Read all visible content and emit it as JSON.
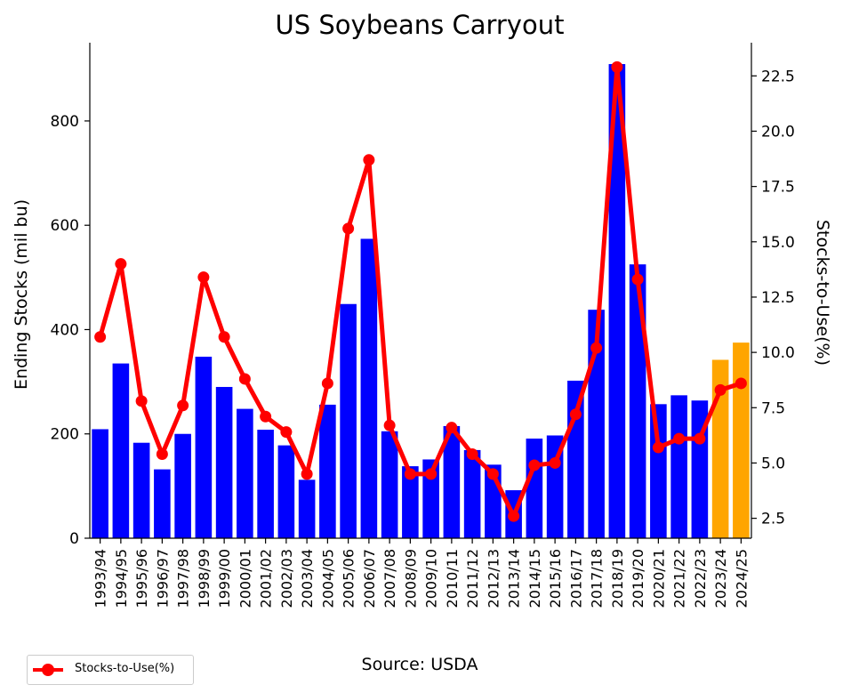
{
  "chart_data": {
    "type": "bar",
    "title": "US Soybeans Carryout",
    "ylabel": "Ending Stocks (mil bu)",
    "y2label": "Stocks-to-Use(%)",
    "source": "Source: USDA",
    "categories": [
      "1993/94",
      "1994/95",
      "1995/96",
      "1996/97",
      "1997/98",
      "1998/99",
      "1999/00",
      "2000/01",
      "2001/02",
      "2002/03",
      "2003/04",
      "2004/05",
      "2005/06",
      "2006/07",
      "2007/08",
      "2008/09",
      "2009/10",
      "2010/11",
      "2011/12",
      "2012/13",
      "2013/14",
      "2014/15",
      "2015/16",
      "2016/17",
      "2017/18",
      "2018/19",
      "2019/20",
      "2020/21",
      "2021/22",
      "2022/23",
      "2023/24",
      "2024/25"
    ],
    "ylim": [
      0,
      950
    ],
    "y2lim": [
      1.6,
      24.0
    ],
    "yticks": [
      "0",
      "200",
      "400",
      "600",
      "800"
    ],
    "y2ticks": [
      "2.5",
      "5.0",
      "7.5",
      "10.0",
      "12.5",
      "15.0",
      "17.5",
      "20.0",
      "22.5"
    ],
    "series": [
      {
        "axis": "left",
        "type": "bar",
        "values": [
          209,
          335,
          183,
          132,
          200,
          348,
          290,
          248,
          208,
          178,
          112,
          256,
          449,
          574,
          205,
          138,
          151,
          215,
          169,
          141,
          92,
          191,
          197,
          302,
          438,
          909,
          525,
          257,
          274,
          264,
          342,
          375
        ],
        "colors": [
          "#0000ff",
          "#0000ff",
          "#0000ff",
          "#0000ff",
          "#0000ff",
          "#0000ff",
          "#0000ff",
          "#0000ff",
          "#0000ff",
          "#0000ff",
          "#0000ff",
          "#0000ff",
          "#0000ff",
          "#0000ff",
          "#0000ff",
          "#0000ff",
          "#0000ff",
          "#0000ff",
          "#0000ff",
          "#0000ff",
          "#0000ff",
          "#0000ff",
          "#0000ff",
          "#0000ff",
          "#0000ff",
          "#0000ff",
          "#0000ff",
          "#0000ff",
          "#0000ff",
          "#0000ff",
          "#ffa500",
          "#ffa500"
        ]
      },
      {
        "name": "Stocks-to-Use(%)",
        "axis": "right",
        "type": "line",
        "color": "#ff0000",
        "values": [
          10.7,
          14.0,
          7.8,
          5.4,
          7.6,
          13.4,
          10.7,
          8.8,
          7.1,
          6.4,
          4.5,
          8.6,
          15.6,
          18.7,
          6.7,
          4.5,
          4.5,
          6.6,
          5.4,
          4.5,
          2.6,
          4.9,
          5.0,
          7.2,
          10.2,
          22.9,
          13.3,
          5.7,
          6.1,
          6.1,
          8.3,
          8.6
        ]
      }
    ],
    "legend": {
      "label": "Stocks-to-Use(%)",
      "placement": "bottom-left"
    },
    "grid": false
  }
}
